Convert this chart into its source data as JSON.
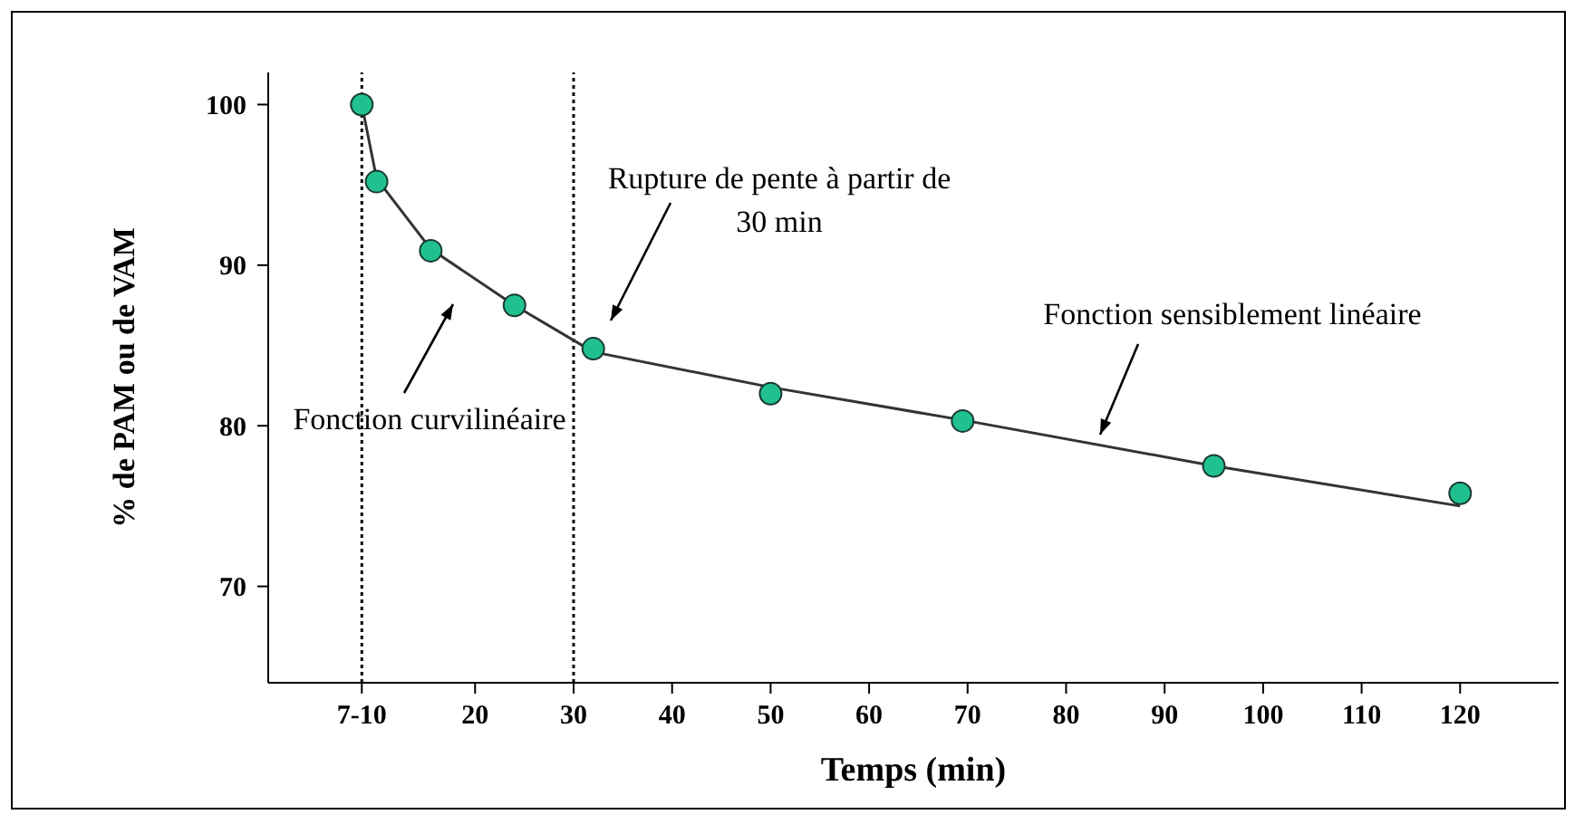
{
  "chart_data": {
    "type": "scatter",
    "xlabel": "Temps (min)",
    "ylabel": "% de PAM ou de VAM",
    "x": [
      8.5,
      10,
      15.5,
      24,
      32,
      50,
      69.5,
      95,
      120
    ],
    "series": [
      {
        "color": "#20c090",
        "marker": "circle",
        "values": [
          100,
          95.2,
          90.9,
          87.5,
          84.8,
          82,
          80.3,
          77.5,
          75.8
        ]
      },
      {
        "type": "line",
        "color": "#333333",
        "marker": "none",
        "line_style": "solid",
        "x": [
          8.5,
          10,
          15.5,
          24,
          32,
          50,
          70,
          95,
          120
        ],
        "values": [
          100,
          95.4,
          91,
          87.5,
          84.6,
          82.4,
          80.3,
          77.5,
          75
        ]
      }
    ],
    "xlim": [
      -1,
      130
    ],
    "xticks": [
      {
        "value": 8.5,
        "label": "7-10"
      },
      20,
      30,
      40,
      50,
      60,
      70,
      80,
      90,
      100,
      110,
      120
    ],
    "ylim": [
      64,
      102
    ],
    "yticks": [
      70,
      80,
      90,
      100
    ],
    "ref_lines": [
      {
        "axis": "x",
        "value": 8.5,
        "line_style": "dotted",
        "color": "#000000"
      },
      {
        "axis": "x",
        "value": 30,
        "line_style": "dotted",
        "color": "#000000"
      }
    ],
    "annotations": [
      "Fonction curvilinéaire",
      "Rupture de pente à partir de 30 min",
      "Fonction sensiblement linéaire"
    ]
  }
}
